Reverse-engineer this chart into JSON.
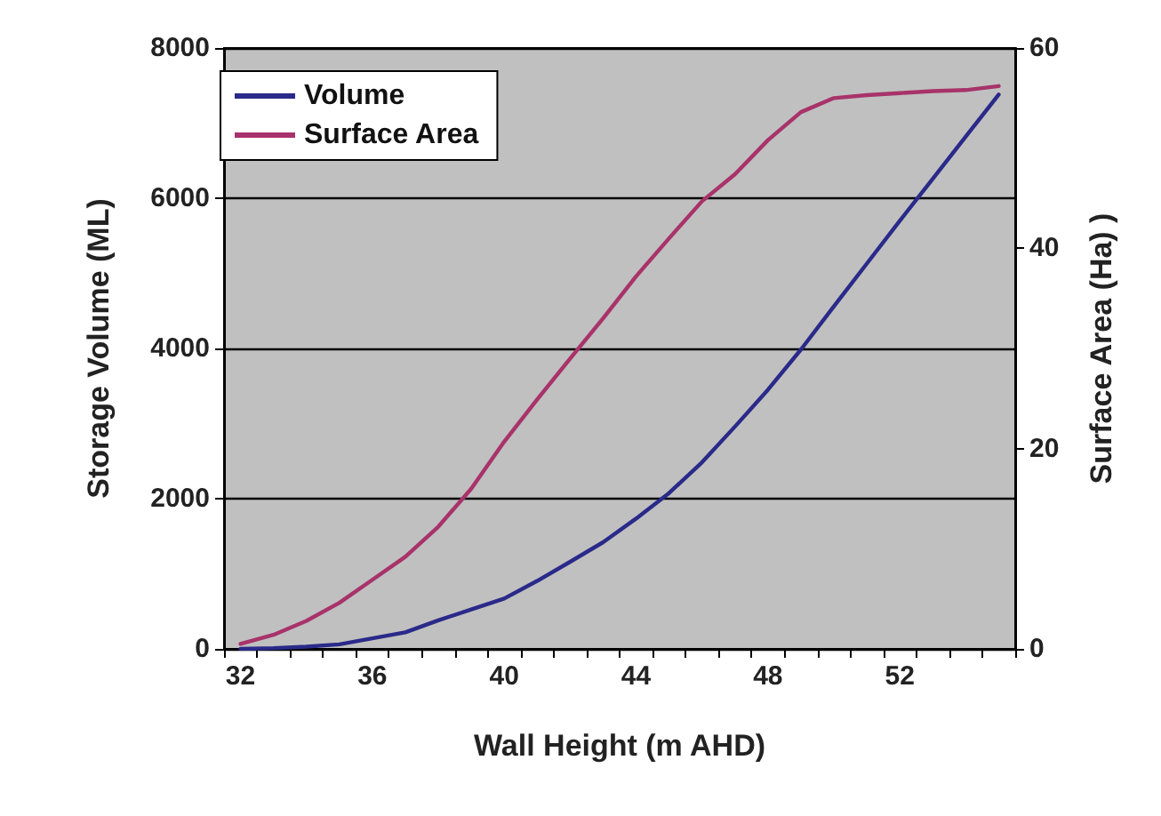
{
  "chart_data": {
    "type": "line",
    "xlabel": "Wall Height (m AHD)",
    "ylabel": "Storage Volume (ML)",
    "y2label": "Surface Area (Ha) )",
    "categories": [
      "32",
      null,
      null,
      null,
      "36",
      null,
      null,
      null,
      "40",
      null,
      null,
      null,
      "44",
      null,
      null,
      null,
      "48",
      null,
      null,
      null,
      "52",
      null,
      null,
      null
    ],
    "series": [
      {
        "name": "Volume",
        "color": "#2a2a8a",
        "values": [
          0,
          10,
          30,
          60,
          140,
          220,
          380,
          525,
          670,
          905,
          1160,
          1420,
          1735,
          2075,
          2485,
          2960,
          3450,
          3985,
          4560,
          5130,
          5700,
          6260,
          6820,
          7380
        ]
      },
      {
        "name": "Surface Area",
        "color": "#a8336a",
        "axis": "y2",
        "values": [
          0.5,
          1.4,
          2.8,
          4.6,
          6.9,
          9.2,
          12.2,
          16.0,
          20.7,
          24.9,
          29.0,
          33.0,
          37.2,
          41.0,
          44.7,
          47.4,
          50.8,
          53.6,
          55.0,
          55.3,
          55.5,
          55.7,
          55.8,
          56.2
        ]
      }
    ],
    "ylim": [
      0,
      8000
    ],
    "yticks": [
      0,
      2000,
      4000,
      6000,
      8000
    ],
    "y2lim": [
      0,
      60
    ],
    "y2ticks": [
      0,
      20,
      40,
      60
    ],
    "grid": "y",
    "legend": "top left",
    "marker": "none",
    "line_style": "solid"
  }
}
